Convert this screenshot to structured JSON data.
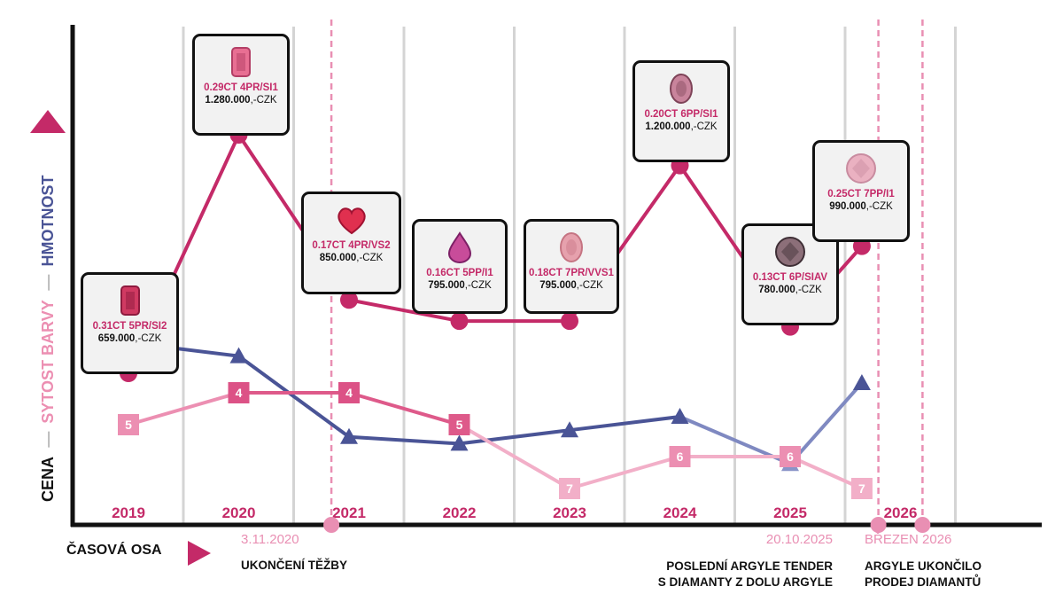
{
  "legend": {
    "price": "CENA",
    "saturation": "SYTOST BARVY",
    "weight": "HMOTNOST",
    "dash": "—"
  },
  "axis": {
    "time_label": "ČASOVÁ OSA"
  },
  "colors": {
    "price": "#c42a68",
    "saturation": "#ec8fb2",
    "weight": "#4a5496",
    "year_label": "#c42a68",
    "event_line": "#e98fb3"
  },
  "chart_data": {
    "type": "line",
    "categories": [
      "2019",
      "2020",
      "2021",
      "2022",
      "2023",
      "2024",
      "2025",
      "2026"
    ],
    "price_series": {
      "name": "CENA",
      "points": [
        {
          "x": 2019,
          "spec": "0.31CT 5PR/SI2",
          "price": "659.000",
          "currency": ",-CZK",
          "value": 659000
        },
        {
          "x": 2020,
          "spec": "0.29CT 4PR/SI1",
          "price": "1.280.000",
          "currency": ",-CZK",
          "value": 1280000
        },
        {
          "x": 2021,
          "spec": "0.17CT 4PR/VS2",
          "price": "850.000",
          "currency": ",-CZK",
          "value": 850000
        },
        {
          "x": 2022,
          "spec": "0.16CT 5PP/I1",
          "price": "795.000",
          "currency": ",-CZK",
          "value": 795000
        },
        {
          "x": 2023,
          "spec": "0.18CT 7PR/VVS1",
          "price": "795.000",
          "currency": ",-CZK",
          "value": 795000
        },
        {
          "x": 2024,
          "spec": "0.20CT 6PP/SI1",
          "price": "1.200.000",
          "currency": ",-CZK",
          "value": 1200000
        },
        {
          "x": 2025,
          "spec": "0.13CT 6P/SIAV",
          "price": "780.000",
          "currency": ",-CZK",
          "value": 780000
        },
        {
          "x": 2025.65,
          "spec": "0.25CT 7PP/I1",
          "price": "990.000",
          "currency": ",-CZK",
          "value": 990000
        }
      ]
    },
    "saturation_series": {
      "name": "SYTOST BARVY",
      "points": [
        {
          "x": 2019,
          "value": 5
        },
        {
          "x": 2020,
          "value": 4
        },
        {
          "x": 2021,
          "value": 4
        },
        {
          "x": 2022,
          "value": 5
        },
        {
          "x": 2023,
          "value": 7
        },
        {
          "x": 2024,
          "value": 6
        },
        {
          "x": 2025,
          "value": 6
        },
        {
          "x": 2025.65,
          "value": 7
        }
      ],
      "labels": [
        "5",
        "4",
        "4",
        "5",
        "7",
        "6",
        "6",
        "7"
      ]
    },
    "weight_series": {
      "name": "HMOTNOST",
      "points": [
        {
          "x": 2019,
          "value": 0.31
        },
        {
          "x": 2020,
          "value": 0.29
        },
        {
          "x": 2021,
          "value": 0.17
        },
        {
          "x": 2022,
          "value": 0.16
        },
        {
          "x": 2023,
          "value": 0.18
        },
        {
          "x": 2024,
          "value": 0.2
        },
        {
          "x": 2025,
          "value": 0.13
        },
        {
          "x": 2025.65,
          "value": 0.25
        }
      ]
    },
    "events": [
      {
        "x": 2020.84,
        "date": "3.11.2020",
        "text": [
          "UKONČENÍ TĚŽBY"
        ]
      },
      {
        "x": 2025.8,
        "date": "20.10.2025",
        "text": [
          "POSLEDNÍ ARGYLE TENDER",
          "S DIAMANTY Z DOLU ARGYLE"
        ]
      },
      {
        "x": 2026.2,
        "date": "BŘEZEN 2026",
        "text": [
          "ARGYLE UKONČILO",
          "PRODEJ DIAMANTŮ"
        ]
      }
    ]
  }
}
